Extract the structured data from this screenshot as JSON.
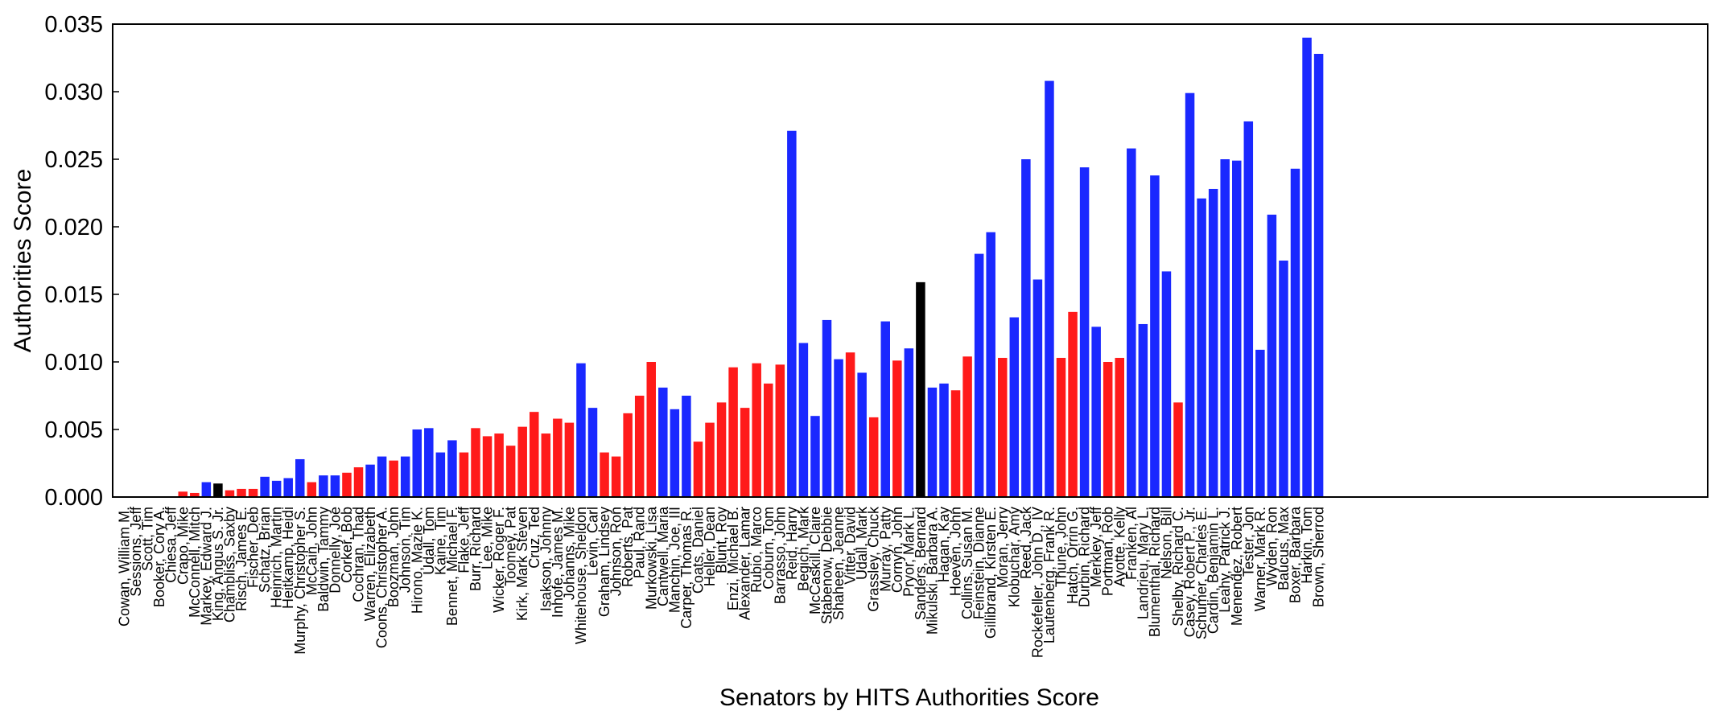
{
  "chart_data": {
    "type": "bar",
    "title": "",
    "xlabel": "Senators by HITS Authorities Score",
    "ylabel": "Authorities Score",
    "ylim": [
      0,
      0.035
    ],
    "yticks": [
      "0.000",
      "0.005",
      "0.010",
      "0.015",
      "0.020",
      "0.025",
      "0.030",
      "0.035"
    ],
    "grid": false,
    "legend": "none",
    "party_colors": {
      "R": "#ff1a1a",
      "D": "#1a28ff",
      "I": "#000000"
    },
    "categories": [
      "Cowan, William M.",
      "Sessions, Jeff",
      "Scott, Tim",
      "Booker, Cory A.",
      "Chiesa, Jeff",
      "Crapo, Mike",
      "McConnell, Mitch",
      "Markey, Edward J.",
      "King, Angus S. Jr.",
      "Chambliss, Saxby",
      "Risch, James E.",
      "Fischer, Deb",
      "Schatz, Brian",
      "Heinrich, Martin",
      "Heitkamp, Heidi",
      "Murphy, Christopher S.",
      "McCain, John",
      "Baldwin, Tammy",
      "Donnelly, Joe",
      "Corker, Bob",
      "Cochran, Thad",
      "Warren, Elizabeth",
      "Coons, Christopher A.",
      "Boozman, John",
      "Johnson, Tim",
      "Hirono, Mazie K.",
      "Udall, Tom",
      "Kaine, Tim",
      "Bennet, Michael F.",
      "Flake, Jeff",
      "Burr, Richard",
      "Lee, Mike",
      "Wicker, Roger F.",
      "Toomey, Pat",
      "Kirk, Mark Steven",
      "Cruz, Ted",
      "Isakson, Johnny",
      "Inhofe, James M.",
      "Johanns, Mike",
      "Whitehouse, Sheldon",
      "Levin, Carl",
      "Graham, Lindsey",
      "Johnson, Ron",
      "Roberts, Pat",
      "Paul, Rand",
      "Murkowski, Lisa",
      "Cantwell, Maria",
      "Manchin, Joe, III",
      "Carper, Thomas R.",
      "Coats, Daniel",
      "Heller, Dean",
      "Blunt, Roy",
      "Enzi, Michael B.",
      "Alexander, Lamar",
      "Rubio, Marco",
      "Coburn, Tom",
      "Barrasso, John",
      "Reid, Harry",
      "Begich, Mark",
      "McCaskill, Claire",
      "Stabenow, Debbie",
      "Shaheen, Jeanne",
      "Vitter, David",
      "Udall, Mark",
      "Grassley, Chuck",
      "Murray, Patty",
      "Cornyn, John",
      "Pryor, Mark L.",
      "Sanders, Bernard",
      "Mikulski, Barbara A.",
      "Hagan, Kay",
      "Hoeven, John",
      "Collins, Susan M.",
      "Feinstein, Dianne",
      "Gillibrand, Kirsten E.",
      "Moran, Jerry",
      "Klobuchar, Amy",
      "Reed, Jack",
      "Rockefeller, John D., IV",
      "Lautenberg, Frank R.",
      "Thune, John",
      "Hatch, Orrin G.",
      "Durbin, Richard",
      "Merkley, Jeff",
      "Portman, Rob",
      "Ayotte, Kelly",
      "Franken, Al",
      "Landrieu, Mary L.",
      "Blumenthal, Richard",
      "Nelson, Bill",
      "Shelby, Richard C.",
      "Casey, Robert P., Jr.",
      "Schumer, Charles E.",
      "Cardin, Benjamin L.",
      "Leahy, Patrick J.",
      "Menendez, Robert",
      "Tester, Jon",
      "Warner, Mark R.",
      "Wyden, Ron",
      "Baucus, Max",
      "Boxer, Barbara",
      "Harkin, Tom",
      "Brown, Sherrod"
    ],
    "series": [
      {
        "values": [
          0.0,
          0.0,
          0.0,
          0.0,
          0.0,
          0.0004,
          0.0003,
          0.0011,
          0.001,
          0.0005,
          0.0006,
          0.0006,
          0.0015,
          0.0012,
          0.0014,
          0.0028,
          0.0011,
          0.0016,
          0.0016,
          0.0018,
          0.0022,
          0.0024,
          0.003,
          0.0027,
          0.003,
          0.005,
          0.0051,
          0.0033,
          0.0042,
          0.0033,
          0.0051,
          0.0045,
          0.0047,
          0.0038,
          0.0052,
          0.0063,
          0.0047,
          0.0058,
          0.0055,
          0.0099,
          0.0066,
          0.0033,
          0.003,
          0.0062,
          0.0075,
          0.01,
          0.0081,
          0.0065,
          0.0075,
          0.0041,
          0.0055,
          0.007,
          0.0096,
          0.0066,
          0.0099,
          0.0084,
          0.0098,
          0.0271,
          0.0114,
          0.006,
          0.0131,
          0.0102,
          0.0107,
          0.0092,
          0.0059,
          0.013,
          0.0101,
          0.011,
          0.0159,
          0.0081,
          0.0084,
          0.0079,
          0.0104,
          0.018,
          0.0196,
          0.0103,
          0.0133,
          0.025,
          0.0161,
          0.0308,
          0.0103,
          0.0137,
          0.0244,
          0.0126,
          0.01,
          0.0103,
          0.0258,
          0.0128,
          0.0238,
          0.0167,
          0.007,
          0.0299,
          0.0221,
          0.0228,
          0.025,
          0.0249,
          0.0278,
          0.0109,
          0.0209,
          0.0175,
          0.0243,
          0.034,
          0.0328
        ]
      }
    ],
    "party": [
      "D",
      "R",
      "R",
      "D",
      "R",
      "R",
      "R",
      "D",
      "I",
      "R",
      "R",
      "R",
      "D",
      "D",
      "D",
      "D",
      "R",
      "D",
      "D",
      "R",
      "R",
      "D",
      "D",
      "R",
      "D",
      "D",
      "D",
      "D",
      "D",
      "R",
      "R",
      "R",
      "R",
      "R",
      "R",
      "R",
      "R",
      "R",
      "R",
      "D",
      "D",
      "R",
      "R",
      "R",
      "R",
      "R",
      "D",
      "D",
      "D",
      "R",
      "R",
      "R",
      "R",
      "R",
      "R",
      "R",
      "R",
      "D",
      "D",
      "D",
      "D",
      "D",
      "R",
      "D",
      "R",
      "D",
      "R",
      "D",
      "I",
      "D",
      "D",
      "R",
      "R",
      "D",
      "D",
      "R",
      "D",
      "D",
      "D",
      "D",
      "R",
      "R",
      "D",
      "D",
      "R",
      "R",
      "D",
      "D",
      "D",
      "D",
      "R",
      "D",
      "D",
      "D",
      "D",
      "D",
      "D",
      "D",
      "D",
      "D",
      "D",
      "D",
      "D"
    ]
  }
}
